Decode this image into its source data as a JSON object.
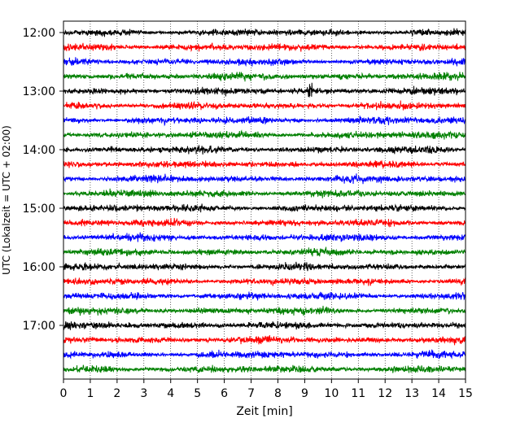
{
  "chart_data": {
    "type": "line",
    "title": "",
    "xlabel": "Zeit  [min]",
    "ylabel": "UTC (Lokalzeit = UTC + 02:00)",
    "xlim": [
      0,
      15
    ],
    "x_ticks": [
      "0",
      "1",
      "2",
      "3",
      "4",
      "5",
      "6",
      "7",
      "8",
      "9",
      "10",
      "11",
      "12",
      "13",
      "14",
      "15"
    ],
    "y_ticks": [
      "12:00",
      "13:00",
      "14:00",
      "15:00",
      "16:00",
      "17:00"
    ],
    "grid": "vertical dotted lines at each minute",
    "trace_start_utc": "12:00",
    "trace_interval_min": 15,
    "trace_count": 24,
    "color_cycle": [
      "#000000",
      "#ff0000",
      "#0000ff",
      "#008000"
    ],
    "events": [
      {
        "trace_utc": "13:00",
        "minute": 9.2,
        "amplitude": "large"
      }
    ]
  }
}
